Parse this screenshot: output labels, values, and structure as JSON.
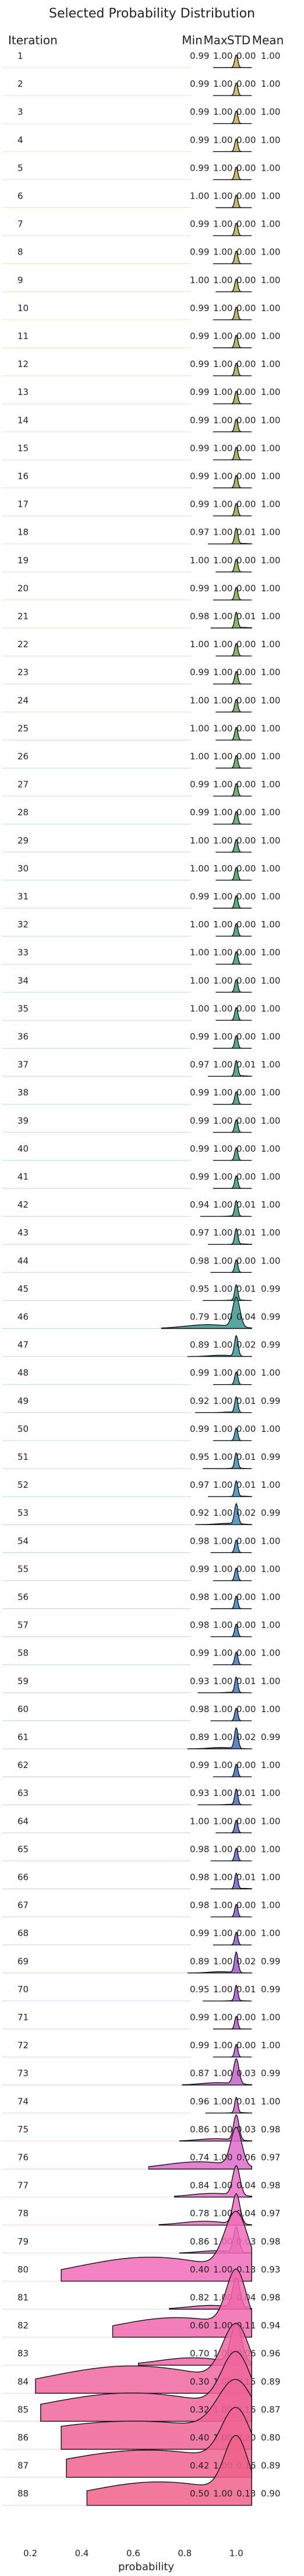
{
  "chart_data": {
    "type": "ridgeline",
    "title": "Selected Probability Distribution",
    "row_header": "Iteration",
    "stat_headers": [
      "Min",
      "Max",
      "STD",
      "Mean"
    ],
    "xlabel": "probability",
    "xlim": [
      0.15,
      1.15
    ],
    "xticks": [
      {
        "value": 0.2,
        "label": "0.2"
      },
      {
        "value": 0.4,
        "label": "0.4"
      },
      {
        "value": 0.6,
        "label": "0.6"
      },
      {
        "value": 0.8,
        "label": "0.8"
      },
      {
        "value": 1.0,
        "label": "1.0"
      }
    ],
    "rows": [
      {
        "label": "1",
        "min": "0.99",
        "max": "1.00",
        "std": "0.00",
        "mean": "1.00"
      },
      {
        "label": "2",
        "min": "0.99",
        "max": "1.00",
        "std": "0.00",
        "mean": "1.00"
      },
      {
        "label": "3",
        "min": "0.99",
        "max": "1.00",
        "std": "0.00",
        "mean": "1.00"
      },
      {
        "label": "4",
        "min": "0.99",
        "max": "1.00",
        "std": "0.00",
        "mean": "1.00"
      },
      {
        "label": "5",
        "min": "0.99",
        "max": "1.00",
        "std": "0.00",
        "mean": "1.00"
      },
      {
        "label": "6",
        "min": "1.00",
        "max": "1.00",
        "std": "0.00",
        "mean": "1.00"
      },
      {
        "label": "7",
        "min": "0.99",
        "max": "1.00",
        "std": "0.00",
        "mean": "1.00"
      },
      {
        "label": "8",
        "min": "0.99",
        "max": "1.00",
        "std": "0.00",
        "mean": "1.00"
      },
      {
        "label": "9",
        "min": "1.00",
        "max": "1.00",
        "std": "0.00",
        "mean": "1.00"
      },
      {
        "label": "10",
        "min": "0.99",
        "max": "1.00",
        "std": "0.00",
        "mean": "1.00"
      },
      {
        "label": "11",
        "min": "0.99",
        "max": "1.00",
        "std": "0.00",
        "mean": "1.00"
      },
      {
        "label": "12",
        "min": "0.99",
        "max": "1.00",
        "std": "0.00",
        "mean": "1.00"
      },
      {
        "label": "13",
        "min": "0.99",
        "max": "1.00",
        "std": "0.00",
        "mean": "1.00"
      },
      {
        "label": "14",
        "min": "0.99",
        "max": "1.00",
        "std": "0.00",
        "mean": "1.00"
      },
      {
        "label": "15",
        "min": "0.99",
        "max": "1.00",
        "std": "0.00",
        "mean": "1.00"
      },
      {
        "label": "16",
        "min": "0.99",
        "max": "1.00",
        "std": "0.00",
        "mean": "1.00"
      },
      {
        "label": "17",
        "min": "0.99",
        "max": "1.00",
        "std": "0.00",
        "mean": "1.00"
      },
      {
        "label": "18",
        "min": "0.97",
        "max": "1.00",
        "std": "0.01",
        "mean": "1.00"
      },
      {
        "label": "19",
        "min": "1.00",
        "max": "1.00",
        "std": "0.00",
        "mean": "1.00"
      },
      {
        "label": "20",
        "min": "0.99",
        "max": "1.00",
        "std": "0.00",
        "mean": "1.00"
      },
      {
        "label": "21",
        "min": "0.98",
        "max": "1.00",
        "std": "0.01",
        "mean": "1.00"
      },
      {
        "label": "22",
        "min": "1.00",
        "max": "1.00",
        "std": "0.00",
        "mean": "1.00"
      },
      {
        "label": "23",
        "min": "0.99",
        "max": "1.00",
        "std": "0.00",
        "mean": "1.00"
      },
      {
        "label": "24",
        "min": "1.00",
        "max": "1.00",
        "std": "0.00",
        "mean": "1.00"
      },
      {
        "label": "25",
        "min": "1.00",
        "max": "1.00",
        "std": "0.00",
        "mean": "1.00"
      },
      {
        "label": "26",
        "min": "1.00",
        "max": "1.00",
        "std": "0.00",
        "mean": "1.00"
      },
      {
        "label": "27",
        "min": "0.99",
        "max": "1.00",
        "std": "0.00",
        "mean": "1.00"
      },
      {
        "label": "28",
        "min": "0.99",
        "max": "1.00",
        "std": "0.00",
        "mean": "1.00"
      },
      {
        "label": "29",
        "min": "1.00",
        "max": "1.00",
        "std": "0.00",
        "mean": "1.00"
      },
      {
        "label": "30",
        "min": "1.00",
        "max": "1.00",
        "std": "0.00",
        "mean": "1.00"
      },
      {
        "label": "31",
        "min": "0.99",
        "max": "1.00",
        "std": "0.00",
        "mean": "1.00"
      },
      {
        "label": "32",
        "min": "1.00",
        "max": "1.00",
        "std": "0.00",
        "mean": "1.00"
      },
      {
        "label": "33",
        "min": "1.00",
        "max": "1.00",
        "std": "0.00",
        "mean": "1.00"
      },
      {
        "label": "34",
        "min": "1.00",
        "max": "1.00",
        "std": "0.00",
        "mean": "1.00"
      },
      {
        "label": "35",
        "min": "1.00",
        "max": "1.00",
        "std": "0.00",
        "mean": "1.00"
      },
      {
        "label": "36",
        "min": "0.99",
        "max": "1.00",
        "std": "0.00",
        "mean": "1.00"
      },
      {
        "label": "37",
        "min": "0.97",
        "max": "1.00",
        "std": "0.01",
        "mean": "1.00"
      },
      {
        "label": "38",
        "min": "0.99",
        "max": "1.00",
        "std": "0.00",
        "mean": "1.00"
      },
      {
        "label": "39",
        "min": "0.99",
        "max": "1.00",
        "std": "0.00",
        "mean": "1.00"
      },
      {
        "label": "40",
        "min": "0.99",
        "max": "1.00",
        "std": "0.00",
        "mean": "1.00"
      },
      {
        "label": "41",
        "min": "0.99",
        "max": "1.00",
        "std": "0.00",
        "mean": "1.00"
      },
      {
        "label": "42",
        "min": "0.94",
        "min2": "",
        "max": "1.00",
        "std": "0.01",
        "mean": "1.00"
      },
      {
        "label": "43",
        "min": "0.97",
        "max": "1.00",
        "std": "0.01",
        "mean": "1.00"
      },
      {
        "label": "44",
        "min": "0.98",
        "max": "1.00",
        "std": "0.00",
        "mean": "1.00"
      },
      {
        "label": "45",
        "min": "0.95",
        "max": "1.00",
        "std": "0.01",
        "mean": "0.99"
      },
      {
        "label": "46",
        "min": "0.79",
        "max": "1.00",
        "std": "0.04",
        "mean": "0.99"
      },
      {
        "label": "47",
        "min": "0.89",
        "max": "1.00",
        "std": "0.02",
        "mean": "0.99"
      },
      {
        "label": "48",
        "min": "0.99",
        "max": "1.00",
        "std": "0.00",
        "mean": "1.00"
      },
      {
        "label": "49",
        "min": "0.92",
        "max": "1.00",
        "std": "0.01",
        "mean": "0.99"
      },
      {
        "label": "50",
        "min": "0.99",
        "max": "1.00",
        "std": "0.00",
        "mean": "1.00"
      },
      {
        "label": "51",
        "min": "0.95",
        "max": "1.00",
        "std": "0.01",
        "mean": "0.99"
      },
      {
        "label": "52",
        "min": "0.97",
        "max": "1.00",
        "std": "0.01",
        "mean": "1.00"
      },
      {
        "label": "53",
        "min": "0.92",
        "max": "1.00",
        "std": "0.02",
        "mean": "0.99"
      },
      {
        "label": "54",
        "min": "0.98",
        "max": "1.00",
        "std": "0.00",
        "mean": "1.00"
      },
      {
        "label": "55",
        "min": "0.99",
        "max": "1.00",
        "std": "0.00",
        "mean": "1.00"
      },
      {
        "label": "56",
        "min": "0.98",
        "max": "1.00",
        "std": "0.00",
        "mean": "1.00"
      },
      {
        "label": "57",
        "min": "0.98",
        "max": "1.00",
        "std": "0.00",
        "mean": "1.00"
      },
      {
        "label": "58",
        "min": "0.99",
        "max": "1.00",
        "std": "0.00",
        "mean": "1.00"
      },
      {
        "label": "59",
        "min": "0.93",
        "max": "1.00",
        "std": "0.01",
        "mean": "1.00"
      },
      {
        "label": "60",
        "min": "0.98",
        "max": "1.00",
        "std": "0.00",
        "mean": "1.00"
      },
      {
        "label": "61",
        "min": "0.89",
        "max": "1.00",
        "std": "0.02",
        "mean": "0.99"
      },
      {
        "label": "62",
        "min": "0.99",
        "max": "1.00",
        "std": "0.00",
        "mean": "1.00"
      },
      {
        "label": "63",
        "min": "0.93",
        "max": "1.00",
        "std": "0.01",
        "mean": "1.00"
      },
      {
        "label": "64",
        "min": "1.00",
        "max": "1.00",
        "std": "0.00",
        "mean": "1.00"
      },
      {
        "label": "65",
        "min": "0.98",
        "max": "1.00",
        "std": "0.00",
        "mean": "1.00"
      },
      {
        "label": "66",
        "min": "0.98",
        "max": "1.00",
        "std": "0.01",
        "mean": "1.00"
      },
      {
        "label": "67",
        "min": "0.98",
        "max": "1.00",
        "std": "0.00",
        "mean": "1.00"
      },
      {
        "label": "68",
        "min": "0.99",
        "max": "1.00",
        "std": "0.00",
        "mean": "1.00"
      },
      {
        "label": "69",
        "min": "0.89",
        "max": "1.00",
        "std": "0.02",
        "mean": "0.99"
      },
      {
        "label": "70",
        "min": "0.95",
        "max": "1.00",
        "std": "0.01",
        "mean": "0.99"
      },
      {
        "label": "71",
        "min": "0.99",
        "max": "1.00",
        "std": "0.00",
        "mean": "1.00"
      },
      {
        "label": "72",
        "min": "0.99",
        "max": "1.00",
        "std": "0.00",
        "mean": "1.00"
      },
      {
        "label": "73",
        "min": "0.87",
        "max": "1.00",
        "std": "0.03",
        "mean": "0.99"
      },
      {
        "label": "74",
        "min": "0.96",
        "max": "1.00",
        "std": "0.01",
        "mean": "1.00"
      },
      {
        "label": "75",
        "min": "0.86",
        "max": "1.00",
        "std": "0.03",
        "mean": "0.98"
      },
      {
        "label": "76",
        "min": "0.74",
        "max": "1.00",
        "std": "0.06",
        "mean": "0.97"
      },
      {
        "label": "77",
        "min": "0.84",
        "max": "1.00",
        "std": "0.04",
        "mean": "0.98"
      },
      {
        "label": "78",
        "min": "0.78",
        "max": "1.00",
        "std": "0.04",
        "mean": "0.97"
      },
      {
        "label": "79",
        "min": "0.86",
        "max": "1.00",
        "std": "0.03",
        "mean": "0.98"
      },
      {
        "label": "80",
        "min": "0.40",
        "max": "1.00",
        "std": "0.13",
        "mean": "0.93"
      },
      {
        "label": "81",
        "min": "0.82",
        "max": "1.00",
        "std": "0.04",
        "mean": "0.98"
      },
      {
        "label": "82",
        "min": "0.60",
        "max": "1.00",
        "std": "0.11",
        "mean": "0.94"
      },
      {
        "label": "83",
        "min": "0.70",
        "max": "1.00",
        "std": "0.06",
        "mean": "0.96"
      },
      {
        "label": "84",
        "min": "0.30",
        "max": "1.00",
        "std": "0.15",
        "mean": "0.89"
      },
      {
        "label": "85",
        "min": "0.32",
        "max": "1.00",
        "std": "0.16",
        "mean": "0.87"
      },
      {
        "label": "86",
        "min": "0.40",
        "max": "1.00",
        "std": "0.20",
        "mean": "0.80"
      },
      {
        "label": "87",
        "min": "0.42",
        "max": "1.00",
        "std": "0.16",
        "mean": "0.89"
      },
      {
        "label": "88",
        "min": "0.50",
        "max": "1.00",
        "std": "0.13",
        "mean": "0.90"
      }
    ],
    "palette": {
      "early": "#c9b25a",
      "mid": "#3a9a87",
      "late_blue": "#3f6fc4",
      "purple": "#9b59d6",
      "pink": "#f06fc7",
      "red": "#f0628a",
      "outline": "#111111",
      "baseline": "#d7d7d7"
    }
  }
}
